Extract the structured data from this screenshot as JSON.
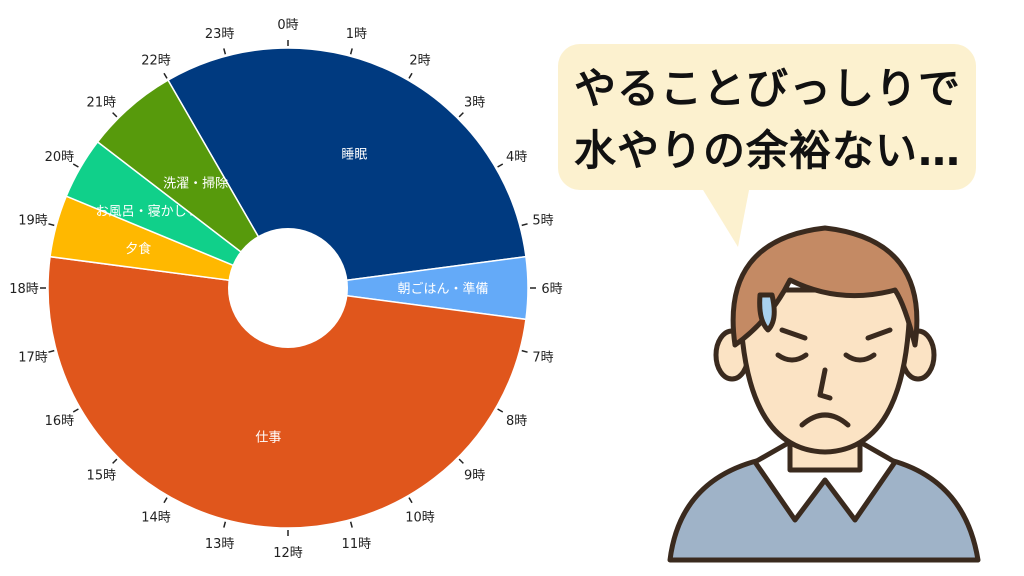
{
  "chart_data": {
    "type": "pie",
    "variant": "donut-24h-clock",
    "start_at": "0時 at top, clockwise",
    "hour_labels": [
      "0時",
      "1時",
      "2時",
      "3時",
      "4時",
      "5時",
      "6時",
      "7時",
      "8時",
      "9時",
      "10時",
      "11時",
      "12時",
      "13時",
      "14時",
      "15時",
      "16時",
      "17時",
      "18時",
      "19時",
      "20時",
      "21時",
      "22時",
      "23時"
    ],
    "slices": [
      {
        "label": "睡眠",
        "start_hour": 22,
        "end_hour": 5.5,
        "hours": 7.5,
        "color": "#003A80"
      },
      {
        "label": "朝ごはん・準備",
        "start_hour": 5.5,
        "end_hour": 6.5,
        "hours": 1,
        "color": "#64AAF8"
      },
      {
        "label": "仕事",
        "start_hour": 6.5,
        "end_hour": 18.5,
        "hours": 12,
        "color": "#E0561C"
      },
      {
        "label": "夕食",
        "start_hour": 18.5,
        "end_hour": 19.5,
        "hours": 1,
        "color": "#FFB800"
      },
      {
        "label": "お風呂・寝かしつけ",
        "start_hour": 19.5,
        "end_hour": 20.5,
        "hours": 1,
        "color": "#10D08A"
      },
      {
        "label": "洗濯・掃除",
        "start_hour": 20.5,
        "end_hour": 22,
        "hours": 1.5,
        "color": "#579A0C"
      }
    ]
  },
  "speech_bubble": {
    "line1": "やることびっしりで",
    "line2": "水やりの余裕ない…"
  },
  "illustration": {
    "subject": "worried-man-with-sweat-drop"
  }
}
